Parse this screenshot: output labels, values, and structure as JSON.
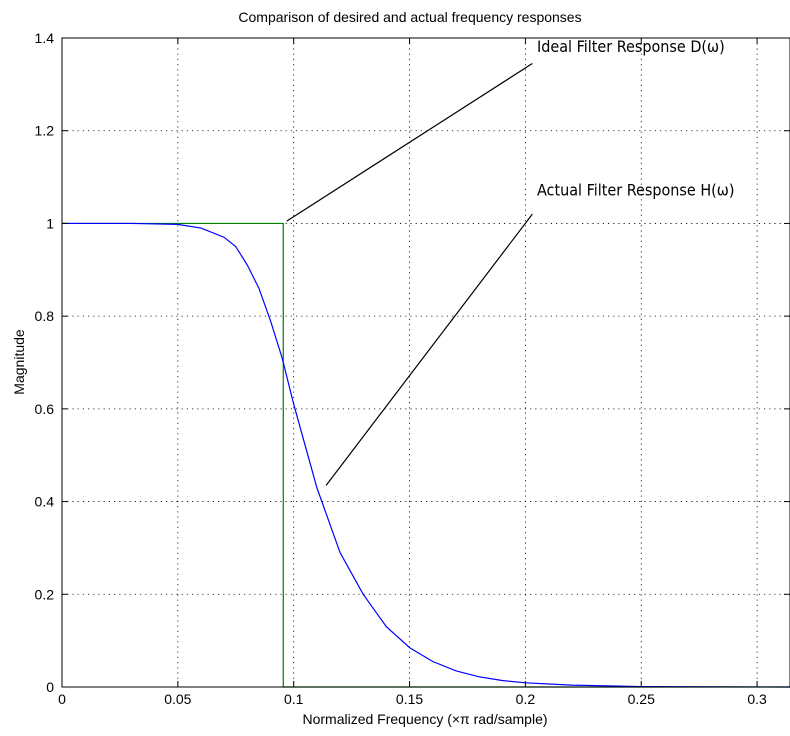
{
  "chart_data": {
    "type": "line",
    "title": "Comparison of desired and actual frequency responses",
    "xlabel": "Normalized Frequency  (×π rad/sample)",
    "ylabel": "Magnitude",
    "xlim": [
      0,
      0.3142
    ],
    "ylim": [
      0,
      1.4
    ],
    "grid": true,
    "x_ticks": [
      0,
      0.05,
      0.1,
      0.15,
      0.2,
      0.25,
      0.3
    ],
    "x_tick_labels": [
      "0",
      "0.05",
      "0.1",
      "0.15",
      "0.2",
      "0.25",
      "0.3"
    ],
    "y_ticks": [
      0,
      0.2,
      0.4,
      0.6,
      0.8,
      1,
      1.2,
      1.4
    ],
    "y_tick_labels": [
      "0",
      "0.2",
      "0.4",
      "0.6",
      "0.8",
      "1",
      "1.2",
      "1.4"
    ],
    "series": [
      {
        "color": "#008000",
        "x": [
          0,
          0.0955,
          0.0955,
          0.3142
        ],
        "y": [
          1,
          1,
          0,
          0
        ]
      },
      {
        "color": "#0000ff",
        "x": [
          0,
          0.03,
          0.05,
          0.06,
          0.07,
          0.075,
          0.08,
          0.085,
          0.09,
          0.095,
          0.1,
          0.105,
          0.11,
          0.115,
          0.12,
          0.13,
          0.14,
          0.15,
          0.16,
          0.17,
          0.18,
          0.19,
          0.2,
          0.22,
          0.25,
          0.3142
        ],
        "y": [
          1,
          1,
          0.998,
          0.99,
          0.97,
          0.95,
          0.91,
          0.86,
          0.79,
          0.71,
          0.61,
          0.52,
          0.43,
          0.36,
          0.29,
          0.2,
          0.13,
          0.085,
          0.055,
          0.035,
          0.022,
          0.014,
          0.009,
          0.004,
          0.001,
          0
        ]
      }
    ],
    "annotations": [
      {
        "text": "Ideal Filter Response D(ω)",
        "x": 0.205,
        "y": 1.37,
        "arrow_to": [
          0.097,
          1.005
        ],
        "arrow_from": [
          0.203,
          1.345
        ]
      },
      {
        "text": "Actual Filter Response H(ω)",
        "x": 0.205,
        "y": 1.06,
        "arrow_to": [
          0.114,
          0.435
        ],
        "arrow_from": [
          0.203,
          1.02
        ]
      }
    ]
  }
}
